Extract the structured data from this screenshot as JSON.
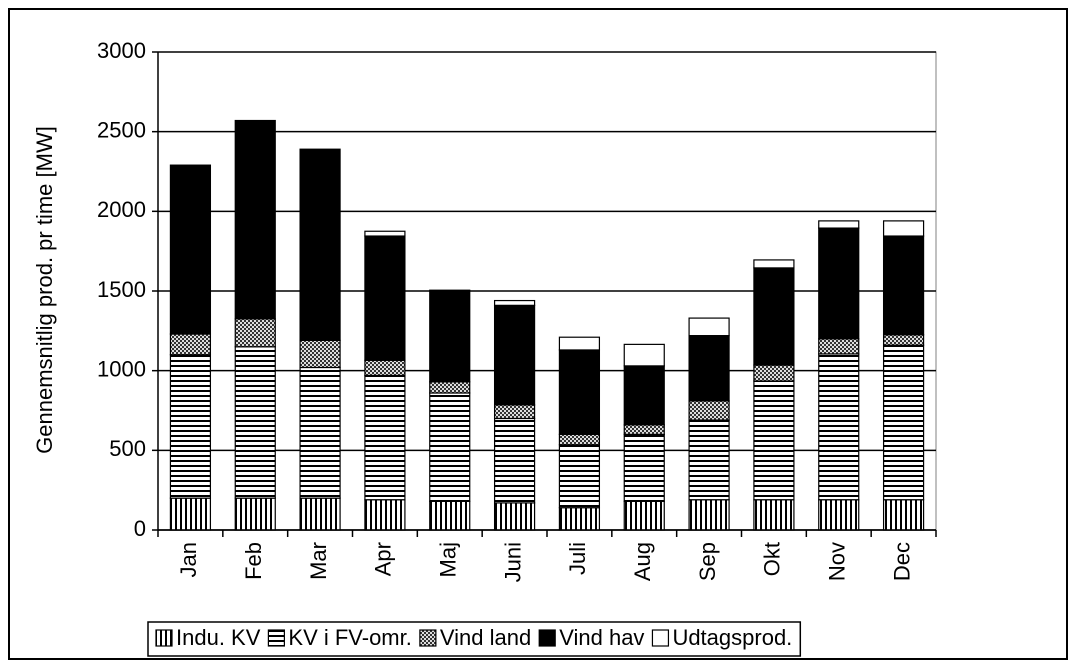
{
  "chart_data": {
    "type": "bar",
    "stacked": true,
    "ylabel": "Gennemsnitlig prod. pr time [MW]",
    "categories": [
      "Jan",
      "Feb",
      "Mar",
      "Apr",
      "Maj",
      "Juni",
      "Juli",
      "Aug",
      "Sep",
      "Okt",
      "Nov",
      "Dec"
    ],
    "series": [
      {
        "name": "Indu. KV",
        "color": "#000000",
        "pattern": "vertical",
        "values": [
          200,
          200,
          200,
          190,
          180,
          170,
          140,
          180,
          190,
          190,
          190,
          190
        ]
      },
      {
        "name": "KV i FV-omr.",
        "color": "#000000",
        "pattern": "horizontal",
        "values": [
          900,
          950,
          820,
          780,
          680,
          530,
          395,
          420,
          500,
          745,
          915,
          970
        ]
      },
      {
        "name": "Vind land",
        "color": "#000000",
        "pattern": "dots",
        "values": [
          130,
          175,
          170,
          95,
          70,
          85,
          65,
          60,
          120,
          100,
          95,
          65
        ]
      },
      {
        "name": "Vind hav",
        "color": "#000000",
        "pattern": "solid",
        "values": [
          1060,
          1245,
          1200,
          780,
          575,
          625,
          530,
          370,
          410,
          610,
          695,
          620
        ]
      },
      {
        "name": "Udtagsprod.",
        "color": "#ffffff",
        "pattern": "solid",
        "values": [
          0,
          0,
          0,
          30,
          0,
          30,
          80,
          135,
          110,
          50,
          45,
          95
        ]
      }
    ],
    "ylim": [
      0,
      3000
    ],
    "yticks": [
      0,
      500,
      1000,
      1500,
      2000,
      2500,
      3000
    ],
    "grid": true,
    "legend": "bottom"
  }
}
